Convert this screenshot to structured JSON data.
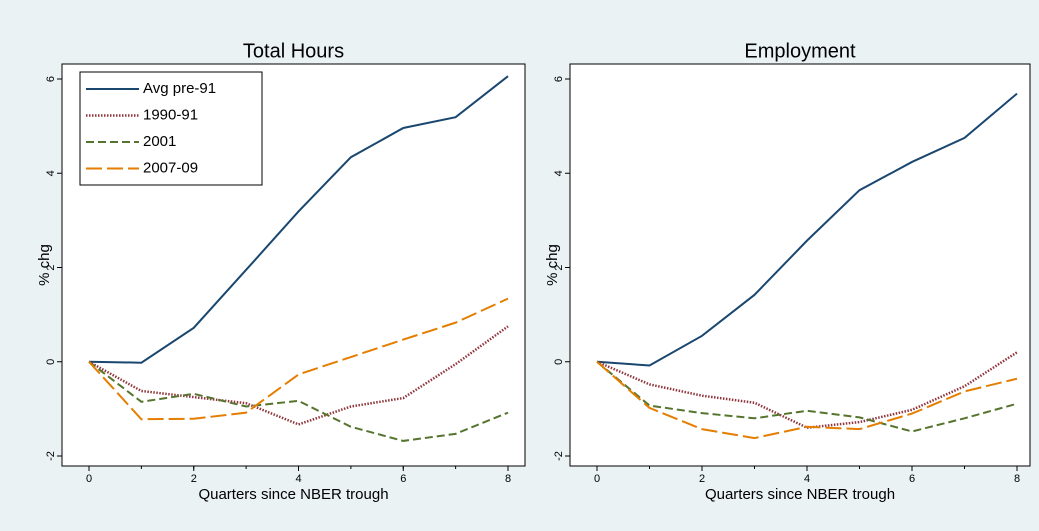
{
  "chart_data": [
    {
      "type": "line",
      "title": "Total Hours",
      "x_label": "Quarters since NBER trough",
      "y_label": "% chg",
      "x": [
        0,
        1,
        2,
        3,
        4,
        5,
        6,
        7,
        8
      ],
      "xlim": [
        0,
        8
      ],
      "xticks": [
        0,
        2,
        4,
        6,
        8
      ],
      "ylim": [
        -2,
        6
      ],
      "yticks": [
        -2,
        0,
        2,
        4,
        6
      ],
      "legend": "top-left",
      "series": [
        {
          "name": "Avg pre-91",
          "color": "#1a476f",
          "dash": "solid",
          "values": [
            0,
            -0.02,
            0.72,
            1.95,
            3.19,
            4.34,
            4.96,
            5.19,
            6.06
          ]
        },
        {
          "name": "1990-91",
          "color": "#90353b",
          "dash": "dotted",
          "values": [
            0,
            -0.62,
            -0.75,
            -0.88,
            -1.33,
            -0.95,
            -0.77,
            -0.05,
            0.75
          ]
        },
        {
          "name": "2001",
          "color": "#55752f",
          "dash": "dashed",
          "values": [
            0,
            -0.85,
            -0.68,
            -0.95,
            -0.83,
            -1.38,
            -1.68,
            -1.53,
            -1.08
          ]
        },
        {
          "name": "2007-09",
          "color": "#e37e00",
          "dash": "longdash",
          "values": [
            0,
            -1.22,
            -1.21,
            -1.08,
            -0.27,
            0.1,
            0.47,
            0.83,
            1.34
          ]
        }
      ]
    },
    {
      "type": "line",
      "title": "Employment",
      "x_label": "Quarters since NBER trough",
      "y_label": "% chg",
      "x": [
        0,
        1,
        2,
        3,
        4,
        5,
        6,
        7,
        8
      ],
      "xlim": [
        0,
        8
      ],
      "xticks": [
        0,
        2,
        4,
        6,
        8
      ],
      "ylim": [
        -2,
        6
      ],
      "yticks": [
        -2,
        0,
        2,
        4,
        6
      ],
      "series": [
        {
          "color": "#1a476f",
          "dash": "solid",
          "values": [
            0,
            -0.08,
            0.55,
            1.42,
            2.57,
            3.64,
            4.24,
            4.75,
            5.69
          ]
        },
        {
          "color": "#90353b",
          "dash": "dotted",
          "values": [
            0,
            -0.48,
            -0.72,
            -0.87,
            -1.4,
            -1.28,
            -1.02,
            -0.52,
            0.2
          ]
        },
        {
          "color": "#55752f",
          "dash": "dashed",
          "values": [
            0,
            -0.93,
            -1.09,
            -1.2,
            -1.04,
            -1.18,
            -1.48,
            -1.2,
            -0.89
          ]
        },
        {
          "color": "#e37e00",
          "dash": "longdash",
          "values": [
            0,
            -0.98,
            -1.43,
            -1.62,
            -1.38,
            -1.43,
            -1.1,
            -0.63,
            -0.36
          ]
        }
      ]
    }
  ]
}
